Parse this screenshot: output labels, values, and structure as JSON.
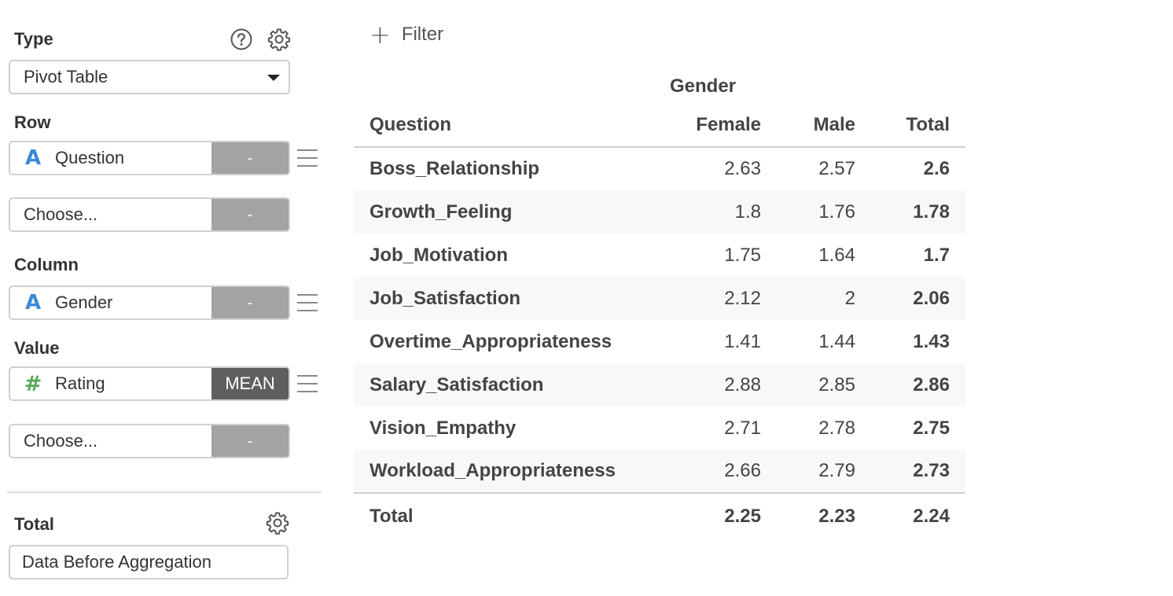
{
  "type_section": {
    "label": "Type",
    "selected": "Pivot Table",
    "help_icon": "question-circle-icon",
    "settings_icon": "gear-icon"
  },
  "row_section": {
    "label": "Row",
    "fields": [
      {
        "type_icon": "A",
        "name": "Question",
        "agg": "-"
      },
      {
        "type_icon": "",
        "name": "Choose...",
        "agg": "-"
      }
    ]
  },
  "column_section": {
    "label": "Column",
    "fields": [
      {
        "type_icon": "A",
        "name": "Gender",
        "agg": "-"
      }
    ]
  },
  "value_section": {
    "label": "Value",
    "fields": [
      {
        "type_icon": "#",
        "name": "Rating",
        "agg": "MEAN"
      },
      {
        "type_icon": "",
        "name": "Choose...",
        "agg": "-"
      }
    ]
  },
  "total_section": {
    "label": "Total",
    "selected": "Data Before Aggregation",
    "settings_icon": "gear-icon"
  },
  "filter": {
    "icon": "plus-icon",
    "label": "Filter"
  },
  "pivot_table": {
    "column_group": "Gender",
    "headers": [
      "Question",
      "Female",
      "Male",
      "Total"
    ],
    "rows": [
      [
        "Boss_Relationship",
        "2.63",
        "2.57",
        "2.6"
      ],
      [
        "Growth_Feeling",
        "1.8",
        "1.76",
        "1.78"
      ],
      [
        "Job_Motivation",
        "1.75",
        "1.64",
        "1.7"
      ],
      [
        "Job_Satisfaction",
        "2.12",
        "2",
        "2.06"
      ],
      [
        "Overtime_Appropriateness",
        "1.41",
        "1.44",
        "1.43"
      ],
      [
        "Salary_Satisfaction",
        "2.88",
        "2.85",
        "2.86"
      ],
      [
        "Vision_Empathy",
        "2.71",
        "2.78",
        "2.75"
      ],
      [
        "Workload_Appropriateness",
        "2.66",
        "2.79",
        "2.73"
      ]
    ],
    "grand_total": [
      "Total",
      "2.25",
      "2.23",
      "2.24"
    ]
  },
  "colors": {
    "string_type": "#3a8ad8",
    "number_type": "#58a858",
    "agg_inactive": "#a3a3a3",
    "agg_active": "#5e5e5e"
  }
}
